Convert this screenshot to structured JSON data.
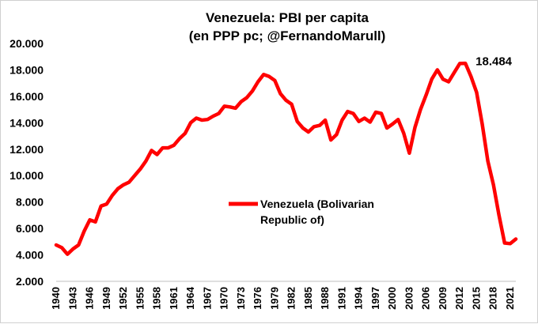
{
  "chart_data": {
    "type": "line",
    "title": "Venezuela: PBI per capita",
    "subtitle": "(en PPP pc; @FernandoMarull)",
    "xlabel": "",
    "ylabel": "",
    "ylim": [
      2000,
      20000
    ],
    "yticks": [
      2000,
      4000,
      6000,
      8000,
      10000,
      12000,
      14000,
      16000,
      18000,
      20000
    ],
    "ytick_labels": [
      "2.000",
      "4.000",
      "6.000",
      "8.000",
      "10.000",
      "12.000",
      "14.000",
      "16.000",
      "18.000",
      "20.000"
    ],
    "xticks": [
      "1940",
      "1943",
      "1946",
      "1949",
      "1952",
      "1955",
      "1958",
      "1961",
      "1964",
      "1967",
      "1970",
      "1973",
      "1976",
      "1979",
      "1982",
      "1985",
      "1988",
      "1991",
      "1994",
      "1997",
      "2000",
      "2003",
      "2006",
      "2009",
      "2012",
      "2015",
      "2018",
      "2021"
    ],
    "xlim": [
      1940,
      2022
    ],
    "grid": false,
    "legend_position": "center",
    "series": [
      {
        "name": "Venezuela (Bolivarian Republic of)",
        "color": "#ff0000",
        "x": [
          1940,
          1941,
          1942,
          1943,
          1944,
          1945,
          1946,
          1947,
          1948,
          1949,
          1950,
          1951,
          1952,
          1953,
          1954,
          1955,
          1956,
          1957,
          1958,
          1959,
          1960,
          1961,
          1962,
          1963,
          1964,
          1965,
          1966,
          1967,
          1968,
          1969,
          1970,
          1971,
          1972,
          1973,
          1974,
          1975,
          1976,
          1977,
          1978,
          1979,
          1980,
          1981,
          1982,
          1983,
          1984,
          1985,
          1986,
          1987,
          1988,
          1989,
          1990,
          1991,
          1992,
          1993,
          1994,
          1995,
          1996,
          1997,
          1998,
          1999,
          2000,
          2001,
          2002,
          2003,
          2004,
          2005,
          2006,
          2007,
          2008,
          2009,
          2010,
          2011,
          2012,
          2013,
          2014,
          2015,
          2016,
          2017,
          2018,
          2019,
          2020,
          2021,
          2022
        ],
        "values": [
          4750,
          4550,
          4050,
          4450,
          4750,
          5800,
          6650,
          6500,
          7700,
          7850,
          8500,
          9000,
          9300,
          9500,
          10000,
          10500,
          11100,
          11900,
          11600,
          12100,
          12100,
          12300,
          12800,
          13200,
          14000,
          14350,
          14200,
          14250,
          14500,
          14700,
          15250,
          15200,
          15100,
          15600,
          15900,
          16400,
          17100,
          17650,
          17500,
          17200,
          16200,
          15700,
          15400,
          14100,
          13600,
          13300,
          13700,
          13800,
          14200,
          12700,
          13100,
          14200,
          14850,
          14700,
          14100,
          14350,
          14050,
          14800,
          14700,
          13600,
          13900,
          14250,
          13200,
          11700,
          13650,
          15000,
          16100,
          17300,
          18000,
          17300,
          17100,
          17800,
          18484,
          18500,
          17500,
          16300,
          13900,
          11100,
          9300,
          7000,
          4900,
          4850,
          5200
        ]
      }
    ],
    "annotations": [
      {
        "text": "18.484",
        "x": 2012,
        "y": 18484
      }
    ]
  }
}
